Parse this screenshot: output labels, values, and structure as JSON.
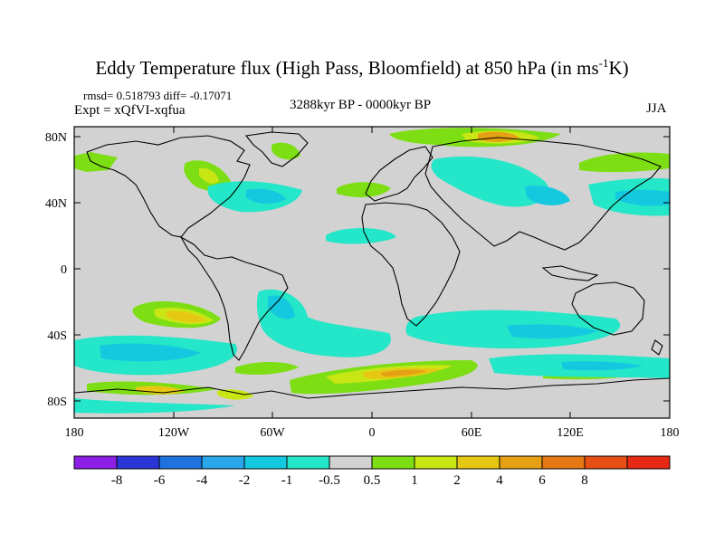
{
  "title": {
    "prefix": "Eddy Temperature flux (High Pass, Bloomfield) at 850 hPa (in ms",
    "sup": "-1",
    "suffix": "K)"
  },
  "stats_text": "rmsd= 0.518793 diff= -0.17071",
  "expt_text": "Expt = xQfVI-xqfua",
  "period_text": "3288kyr BP - 0000kyr BP",
  "season_text": "JJA",
  "map": {
    "lon_ticks": [
      "180",
      "120W",
      "60W",
      "0",
      "60E",
      "120E",
      "180"
    ],
    "lat_ticks": [
      "80N",
      "40N",
      "0",
      "40S",
      "80S"
    ],
    "background": "#d2d2d2",
    "coastline_color": "#000000"
  },
  "colorbar": {
    "colors": [
      "#8c1ee6",
      "#2a36d8",
      "#1e73e0",
      "#2aa6ea",
      "#14c8e0",
      "#24e6c8",
      "#d2d2d2",
      "#7ede14",
      "#c8e614",
      "#e6c814",
      "#e6a014",
      "#e67814",
      "#e65014",
      "#e62814"
    ],
    "labels": [
      "-8",
      "-6",
      "-4",
      "-2",
      "-1",
      "-0.5",
      "0.5",
      "1",
      "2",
      "4",
      "6",
      "8"
    ]
  }
}
